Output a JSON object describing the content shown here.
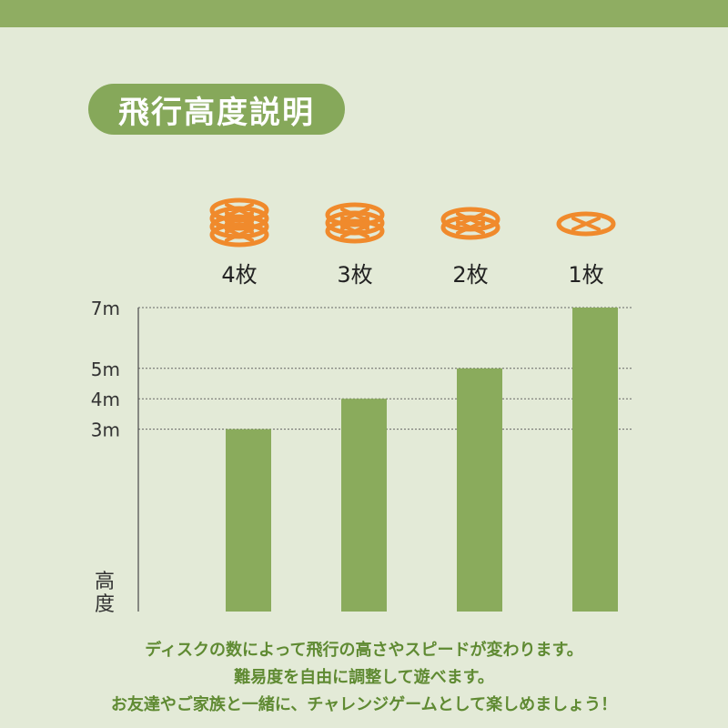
{
  "title": "飛行高度説明",
  "chart_data": {
    "type": "bar",
    "categories": [
      "4枚",
      "3枚",
      "2枚",
      "1枚"
    ],
    "values": [
      3,
      4,
      5,
      7
    ],
    "ylabel": "高度",
    "yticks": [
      "3m",
      "4m",
      "5m",
      "7m"
    ],
    "ytick_values": [
      3,
      4,
      5,
      7
    ],
    "ylim": [
      -3,
      7
    ],
    "grid": "dotted lines at tick values",
    "disc_counts": [
      4,
      3,
      2,
      1
    ],
    "colors": {
      "bar": "#8aab5c",
      "disc": "#f08a2c",
      "axis": "#555555"
    }
  },
  "captions": [
    "ディスクの数によって飛行の高さやスピードが変わります。",
    "難易度を自由に調整して遊べます。",
    "お友達やご家族と一緒に、チャレンジゲームとして楽しめましょう！"
  ]
}
